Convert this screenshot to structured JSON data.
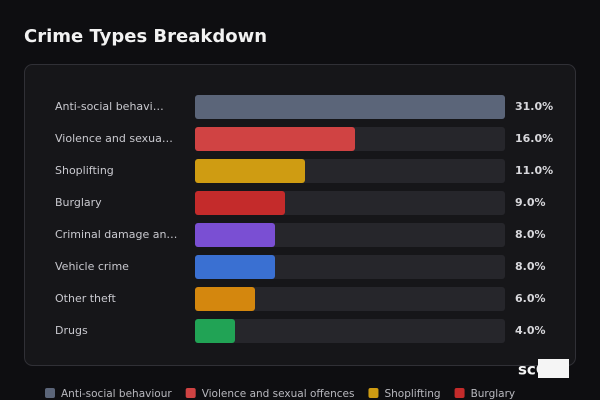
{
  "chart_data": {
    "type": "bar",
    "orientation": "horizontal",
    "title": "Crime Types Breakdown",
    "categories": [
      "Anti-social behavi…",
      "Violence and sexua…",
      "Shoplifting",
      "Burglary",
      "Criminal damage an…",
      "Vehicle crime",
      "Other theft",
      "Drugs"
    ],
    "values": [
      31,
      16,
      11,
      9,
      8,
      8,
      6,
      4
    ],
    "value_labels": [
      "31.0%",
      "16.0%",
      "11.0%",
      "9.0%",
      "8.0%",
      "8.0%",
      "6.0%",
      "4.0%"
    ],
    "colors": [
      "#5b6579",
      "#d04343",
      "#cf9c12",
      "#c42b2b",
      "#7a4fd3",
      "#3a70d2",
      "#d4870e",
      "#21a355"
    ],
    "legend": [
      {
        "name": "Anti-social behaviour",
        "color": "#5b6579"
      },
      {
        "name": "Violence and sexual offences",
        "color": "#d04343"
      },
      {
        "name": "Shoplifting",
        "color": "#cf9c12"
      },
      {
        "name": "Burglary",
        "color": "#c42b2b"
      }
    ],
    "watermark": "scOS"
  }
}
